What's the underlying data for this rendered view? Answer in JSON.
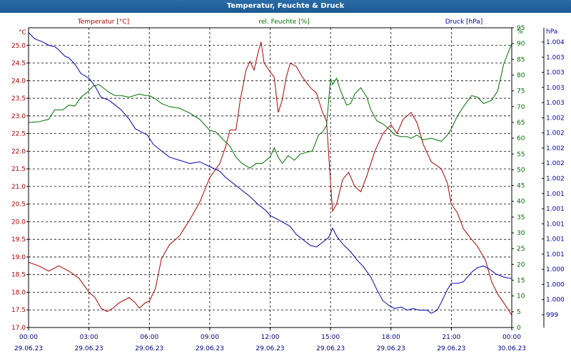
{
  "window": {
    "title": "Temperatur, Feuchte & Druck"
  },
  "chart_data": {
    "type": "line",
    "title": "Temperatur, Feuchte & Druck",
    "x_ticks": [
      {
        "time": "00:00",
        "date": "29.06.23"
      },
      {
        "time": "03:00",
        "date": "29.06.23"
      },
      {
        "time": "06:00",
        "date": "29.06.23"
      },
      {
        "time": "09:00",
        "date": "29.06.23"
      },
      {
        "time": "12:00",
        "date": "29.06.23"
      },
      {
        "time": "15:00",
        "date": "29.06.23"
      },
      {
        "time": "18:00",
        "date": "29.06.23"
      },
      {
        "time": "21:00",
        "date": "29.06.23"
      },
      {
        "time": "00:00",
        "date": "30.06.23"
      }
    ],
    "xlim_hours": [
      0,
      24
    ],
    "grid": true,
    "axes": {
      "temperature": {
        "label": "Temperatur [°C]",
        "unit": "°C",
        "ylim": [
          17.0,
          25.5
        ],
        "ticks": [
          "17.0",
          "17.5",
          "18.0",
          "18.5",
          "19.0",
          "19.5",
          "20.0",
          "20.5",
          "21.0",
          "21.5",
          "22.0",
          "22.5",
          "23.0",
          "23.5",
          "24.0",
          "24.5",
          "25.0"
        ]
      },
      "humidity": {
        "label": "rel. Feuchte [%]",
        "unit": "%",
        "ylim": [
          0,
          95
        ],
        "ticks": [
          "0",
          "5",
          "10",
          "15",
          "20",
          "25",
          "30",
          "35",
          "40",
          "45",
          "50",
          "55",
          "60",
          "65",
          "70",
          "75",
          "80",
          "85",
          "90",
          "95"
        ]
      },
      "pressure": {
        "label": "Druck [hPa]",
        "unit": "hPa",
        "tick_labels": [
          "999",
          "1.000",
          "1.000",
          "1.000",
          "1.001",
          "1.001",
          "1.001",
          "1.001",
          "1.001",
          "1.002",
          "1.002",
          "1.002",
          "1.002",
          "1.002",
          "1.003",
          "1.003",
          "1.003",
          "1.003",
          "1.004"
        ]
      }
    },
    "colors": {
      "temperature": "#b00000",
      "humidity": "#007000",
      "pressure": "#0000b0",
      "axis_text": "#000080",
      "grid": "#000000"
    },
    "series": [
      {
        "name": "Temperatur [°C]",
        "axis": "temperature",
        "points": [
          [
            0,
            18.85
          ],
          [
            0.5,
            18.75
          ],
          [
            1,
            18.6
          ],
          [
            1.5,
            18.75
          ],
          [
            2,
            18.6
          ],
          [
            2.5,
            18.4
          ],
          [
            3,
            18.0
          ],
          [
            3.3,
            17.85
          ],
          [
            3.6,
            17.55
          ],
          [
            3.9,
            17.45
          ],
          [
            4.2,
            17.55
          ],
          [
            4.5,
            17.7
          ],
          [
            5,
            17.85
          ],
          [
            5.3,
            17.7
          ],
          [
            5.5,
            17.55
          ],
          [
            5.8,
            17.7
          ],
          [
            6,
            17.75
          ],
          [
            6.3,
            18.1
          ],
          [
            6.6,
            18.95
          ],
          [
            7,
            19.35
          ],
          [
            7.5,
            19.6
          ],
          [
            8,
            20.05
          ],
          [
            8.5,
            20.55
          ],
          [
            9,
            21.25
          ],
          [
            9.5,
            21.65
          ],
          [
            9.8,
            22.15
          ],
          [
            10,
            22.6
          ],
          [
            10.3,
            22.6
          ],
          [
            10.5,
            23.4
          ],
          [
            10.8,
            24.3
          ],
          [
            11,
            24.55
          ],
          [
            11.2,
            24.3
          ],
          [
            11.4,
            24.8
          ],
          [
            11.55,
            25.1
          ],
          [
            11.7,
            24.5
          ],
          [
            12,
            24.25
          ],
          [
            12.2,
            24.1
          ],
          [
            12.4,
            23.1
          ],
          [
            12.6,
            23.45
          ],
          [
            12.8,
            24.1
          ],
          [
            13,
            24.5
          ],
          [
            13.3,
            24.4
          ],
          [
            13.6,
            24.1
          ],
          [
            14,
            23.8
          ],
          [
            14.3,
            23.65
          ],
          [
            14.6,
            23.1
          ],
          [
            14.8,
            22.85
          ],
          [
            15,
            21.1
          ],
          [
            15.1,
            20.3
          ],
          [
            15.3,
            20.5
          ],
          [
            15.6,
            21.2
          ],
          [
            15.9,
            21.4
          ],
          [
            16.2,
            21.0
          ],
          [
            16.5,
            20.85
          ],
          [
            16.8,
            21.3
          ],
          [
            17.2,
            22.0
          ],
          [
            17.6,
            22.5
          ],
          [
            18,
            22.75
          ],
          [
            18.3,
            22.5
          ],
          [
            18.6,
            22.9
          ],
          [
            19,
            23.1
          ],
          [
            19.3,
            22.8
          ],
          [
            19.6,
            22.2
          ],
          [
            20,
            21.7
          ],
          [
            20.5,
            21.5
          ],
          [
            20.8,
            21.1
          ],
          [
            21,
            20.5
          ],
          [
            21.3,
            20.25
          ],
          [
            21.6,
            19.8
          ],
          [
            22,
            19.5
          ],
          [
            22.3,
            19.3
          ],
          [
            22.7,
            18.9
          ],
          [
            23,
            18.3
          ],
          [
            23.3,
            17.95
          ],
          [
            23.6,
            17.7
          ],
          [
            24,
            17.35
          ]
        ]
      },
      {
        "name": "rel. Feuchte [%]",
        "axis": "humidity",
        "points": [
          [
            0,
            65
          ],
          [
            0.5,
            65.2
          ],
          [
            1,
            66
          ],
          [
            1.3,
            69
          ],
          [
            1.7,
            69
          ],
          [
            2,
            70.5
          ],
          [
            2.3,
            70.2
          ],
          [
            2.6,
            73
          ],
          [
            3,
            75
          ],
          [
            3.2,
            76.5
          ],
          [
            3.5,
            77
          ],
          [
            3.8,
            75.5
          ],
          [
            4,
            74.5
          ],
          [
            4.3,
            73.5
          ],
          [
            4.6,
            73.5
          ],
          [
            5,
            73
          ],
          [
            5.5,
            74
          ],
          [
            5.8,
            73.5
          ],
          [
            6,
            73.5
          ],
          [
            6.3,
            72.5
          ],
          [
            6.6,
            71
          ],
          [
            7,
            70
          ],
          [
            7.5,
            69.5
          ],
          [
            8,
            68
          ],
          [
            8.5,
            66
          ],
          [
            9,
            62.5
          ],
          [
            9.3,
            62
          ],
          [
            9.6,
            60
          ],
          [
            10,
            57.5
          ],
          [
            10.3,
            54
          ],
          [
            10.6,
            52
          ],
          [
            11,
            50.5
          ],
          [
            11.3,
            52
          ],
          [
            11.6,
            52
          ],
          [
            12,
            54
          ],
          [
            12.2,
            57
          ],
          [
            12.4,
            54
          ],
          [
            12.6,
            52
          ],
          [
            12.9,
            54.5
          ],
          [
            13.2,
            53
          ],
          [
            13.5,
            55
          ],
          [
            13.8,
            55.5
          ],
          [
            14.1,
            56
          ],
          [
            14.4,
            61
          ],
          [
            14.6,
            62
          ],
          [
            14.8,
            64
          ],
          [
            15,
            79
          ],
          [
            15.1,
            77
          ],
          [
            15.3,
            79
          ],
          [
            15.5,
            75
          ],
          [
            15.8,
            70.5
          ],
          [
            16,
            71
          ],
          [
            16.2,
            74
          ],
          [
            16.5,
            76
          ],
          [
            16.8,
            73
          ],
          [
            17,
            69
          ],
          [
            17.3,
            65.5
          ],
          [
            17.6,
            64.5
          ],
          [
            17.9,
            63
          ],
          [
            18.2,
            61
          ],
          [
            18.5,
            60.5
          ],
          [
            18.8,
            60.5
          ],
          [
            19,
            60
          ],
          [
            19.3,
            61
          ],
          [
            19.6,
            59.5
          ],
          [
            20,
            60
          ],
          [
            20.5,
            59
          ],
          [
            20.8,
            61
          ],
          [
            21,
            63
          ],
          [
            21.3,
            67
          ],
          [
            21.6,
            70
          ],
          [
            22,
            73.5
          ],
          [
            22.3,
            73
          ],
          [
            22.6,
            71
          ],
          [
            23,
            72
          ],
          [
            23.3,
            75
          ],
          [
            23.6,
            83.5
          ],
          [
            24,
            90
          ]
        ]
      },
      {
        "name": "Druck [hPa]",
        "axis": "pressure",
        "points": [
          [
            0,
            93.5
          ],
          [
            0.3,
            91.5
          ],
          [
            0.7,
            90.5
          ],
          [
            1,
            89.5
          ],
          [
            1.3,
            89
          ],
          [
            1.5,
            88
          ],
          [
            1.8,
            86
          ],
          [
            2,
            85.5
          ],
          [
            2.3,
            83.5
          ],
          [
            2.6,
            80.5
          ],
          [
            3,
            79
          ],
          [
            3.3,
            76.5
          ],
          [
            3.6,
            73
          ],
          [
            4,
            72
          ],
          [
            4.3,
            70.5
          ],
          [
            4.6,
            69
          ],
          [
            5,
            66
          ],
          [
            5.3,
            63
          ],
          [
            5.6,
            62
          ],
          [
            5.9,
            61
          ],
          [
            6.2,
            58
          ],
          [
            6.5,
            56.5
          ],
          [
            7,
            54
          ],
          [
            7.5,
            53
          ],
          [
            8,
            52
          ],
          [
            8.5,
            52.5
          ],
          [
            9,
            51
          ],
          [
            9.5,
            49.5
          ],
          [
            9.8,
            47.5
          ],
          [
            10.2,
            45.5
          ],
          [
            10.6,
            43.5
          ],
          [
            11,
            41.5
          ],
          [
            11.4,
            39
          ],
          [
            11.8,
            37
          ],
          [
            12,
            35.5
          ],
          [
            12.3,
            34.5
          ],
          [
            12.6,
            33.5
          ],
          [
            13,
            32
          ],
          [
            13.3,
            29.5
          ],
          [
            13.6,
            28
          ],
          [
            14,
            26
          ],
          [
            14.3,
            25.5
          ],
          [
            14.6,
            27
          ],
          [
            14.9,
            28.5
          ],
          [
            15.1,
            31.5
          ],
          [
            15.3,
            29
          ],
          [
            15.6,
            26.5
          ],
          [
            16,
            24
          ],
          [
            16.3,
            21.5
          ],
          [
            16.6,
            19.5
          ],
          [
            17,
            16
          ],
          [
            17.3,
            12
          ],
          [
            17.6,
            8.5
          ],
          [
            17.9,
            7
          ],
          [
            18.2,
            6
          ],
          [
            18.5,
            6.5
          ],
          [
            18.8,
            5.5
          ],
          [
            19.1,
            6
          ],
          [
            19.4,
            5.5
          ],
          [
            19.8,
            5.5
          ],
          [
            20,
            4.5
          ],
          [
            20.3,
            5.5
          ],
          [
            20.5,
            8
          ],
          [
            20.8,
            12
          ],
          [
            21,
            14
          ],
          [
            21.3,
            14
          ],
          [
            21.6,
            14.5
          ],
          [
            22,
            17.5
          ],
          [
            22.3,
            19
          ],
          [
            22.6,
            19.5
          ],
          [
            22.9,
            18.5
          ],
          [
            23.2,
            17
          ],
          [
            23.6,
            16
          ],
          [
            24,
            15.5
          ]
        ]
      }
    ]
  }
}
